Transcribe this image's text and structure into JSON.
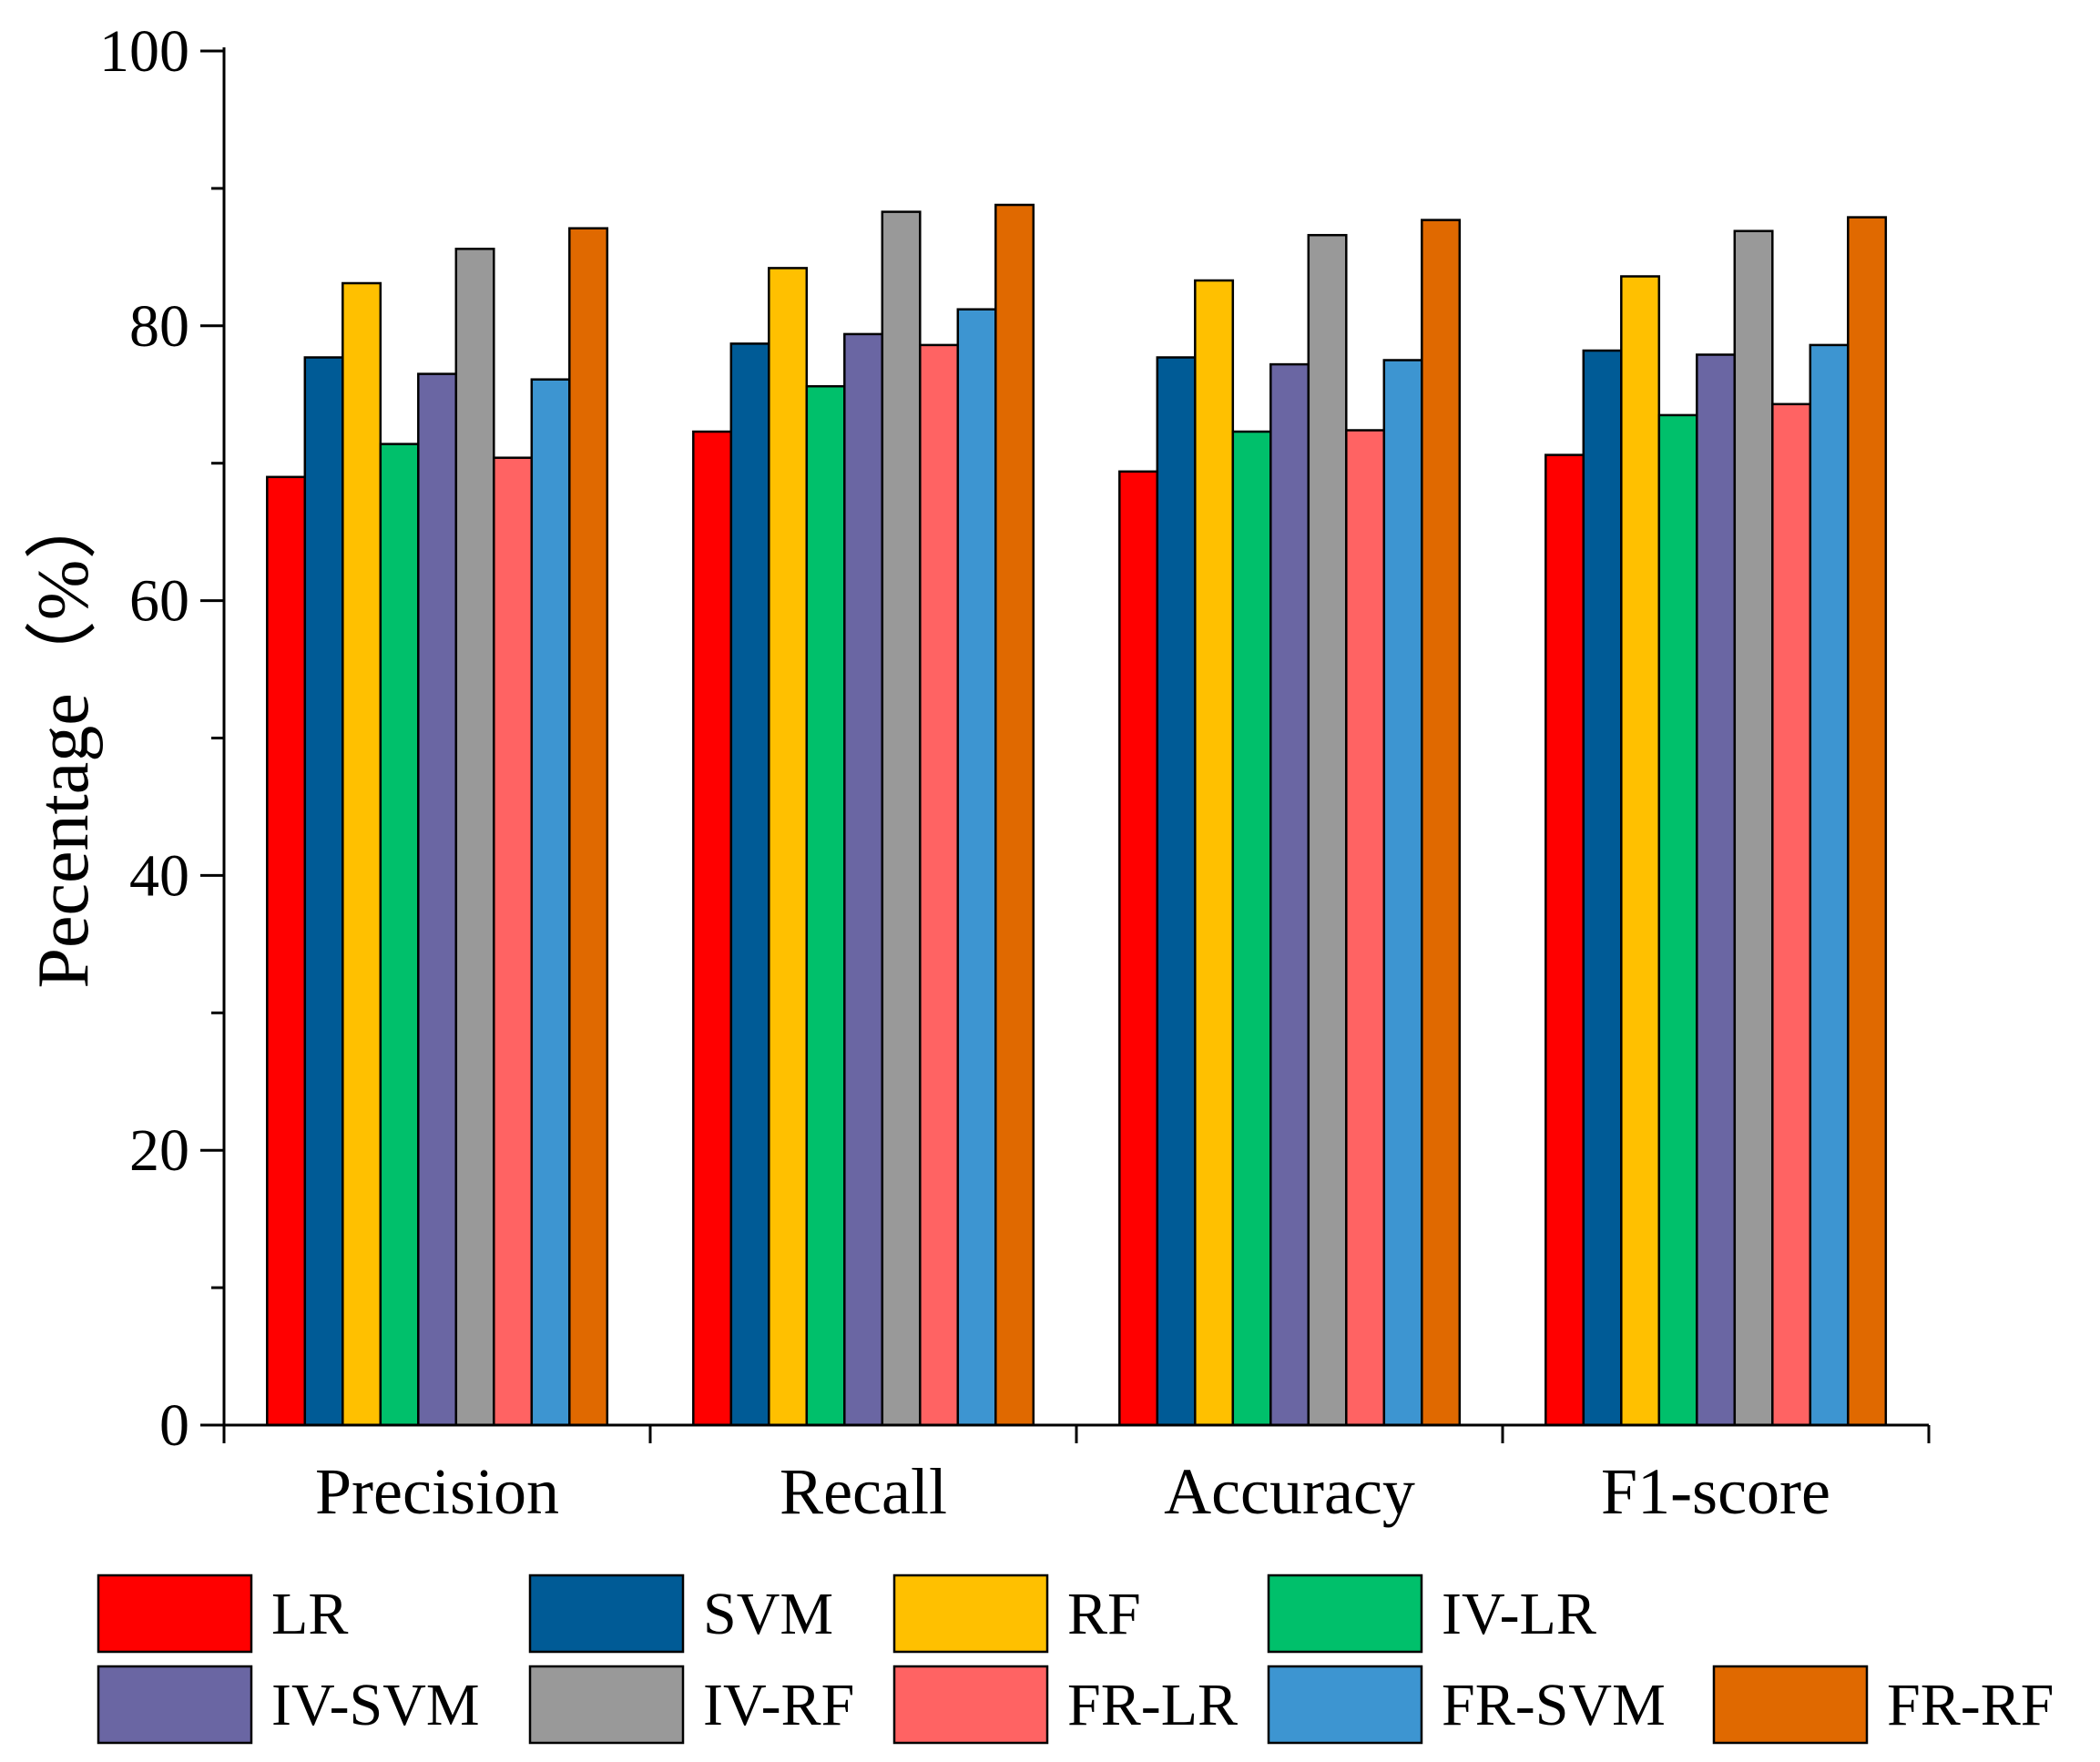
{
  "chart_data": {
    "type": "bar",
    "title": "",
    "xlabel": "",
    "ylabel": "Pecentage（%）",
    "ylim": [
      0,
      100
    ],
    "yticks": [
      "0",
      "20",
      "40",
      "60",
      "80",
      "100"
    ],
    "grid": false,
    "legend_position": "bottom",
    "categories": [
      "Precision",
      "Recall",
      "Accuracy",
      "F1-score"
    ],
    "series": [
      {
        "name": "LR",
        "color": "#ff0000",
        "values": [
          69.0,
          72.3,
          69.4,
          70.6
        ]
      },
      {
        "name": "SVM",
        "color": "#005b96",
        "values": [
          77.7,
          78.7,
          77.7,
          78.2
        ]
      },
      {
        "name": "RF",
        "color": "#ffc000",
        "values": [
          83.1,
          84.2,
          83.3,
          83.6
        ]
      },
      {
        "name": "IV-LR",
        "color": "#00c06b",
        "values": [
          71.4,
          75.6,
          72.3,
          73.5
        ]
      },
      {
        "name": "IV-SVM",
        "color": "#6a66a3",
        "values": [
          76.5,
          79.4,
          77.2,
          77.9
        ]
      },
      {
        "name": "IV-RF",
        "color": "#999999",
        "values": [
          85.6,
          88.3,
          86.6,
          86.9
        ]
      },
      {
        "name": "FR-LR",
        "color": "#ff6363",
        "values": [
          70.4,
          78.6,
          72.4,
          74.3
        ]
      },
      {
        "name": "FR-SVM",
        "color": "#3d95d1",
        "values": [
          76.1,
          81.2,
          77.5,
          78.6
        ]
      },
      {
        "name": "FR-RF",
        "color": "#e06900",
        "values": [
          87.1,
          88.8,
          87.7,
          87.9
        ]
      }
    ]
  }
}
